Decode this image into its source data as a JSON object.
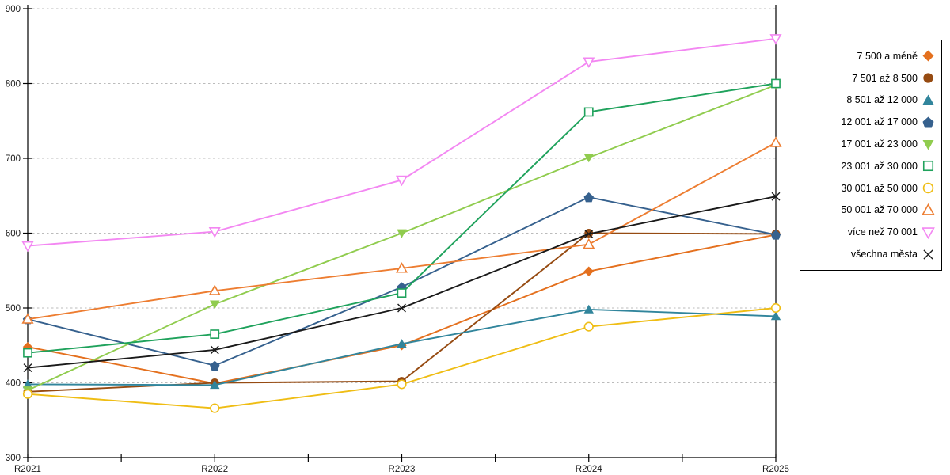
{
  "chart_data": {
    "type": "line",
    "title": "",
    "xlabel": "",
    "ylabel": "",
    "x_categories": [
      "R2021",
      "R2022",
      "R2023",
      "R2024",
      "R2025"
    ],
    "ylim": [
      300,
      900
    ],
    "y_ticks": [
      300,
      400,
      500,
      600,
      700,
      800,
      900
    ],
    "grid": "horizontal-dashed",
    "legend_position": "right",
    "series": [
      {
        "name": "7 500 a méně",
        "color": "#E4701E",
        "marker": "diamond-filled",
        "values": [
          448,
          399,
          450,
          549,
          598
        ]
      },
      {
        "name": "7 501 až 8 500",
        "color": "#964B12",
        "marker": "circle-filled",
        "values": [
          388,
          400,
          402,
          600,
          599
        ]
      },
      {
        "name": "8 501 až 12 000",
        "color": "#31859C",
        "marker": "triangle-up-filled",
        "values": [
          398,
          397,
          452,
          498,
          489
        ]
      },
      {
        "name": "12 001 až 17 000",
        "color": "#36618E",
        "marker": "pentagon-filled",
        "values": [
          485,
          423,
          528,
          648,
          598
        ]
      },
      {
        "name": "17 001 až 23 000",
        "color": "#90CC4E",
        "marker": "triangle-down-filled",
        "values": [
          390,
          505,
          600,
          701,
          798
        ]
      },
      {
        "name": "23 001 až 30 000",
        "color": "#1FA25C",
        "marker": "square-open",
        "values": [
          440,
          465,
          520,
          762,
          800
        ]
      },
      {
        "name": "30 001 až 50 000",
        "color": "#EFBD14",
        "marker": "circle-open",
        "values": [
          385,
          366,
          398,
          475,
          500
        ]
      },
      {
        "name": "50 001 až 70 000",
        "color": "#ED7D31",
        "marker": "triangle-up-open",
        "values": [
          485,
          523,
          553,
          585,
          721
        ]
      },
      {
        "name": "více než 70 001",
        "color": "#F387F2",
        "marker": "triangle-down-open",
        "values": [
          583,
          602,
          671,
          829,
          860
        ]
      },
      {
        "name": "všechna města",
        "color": "#1A1A1A",
        "marker": "x-cross",
        "values": [
          420,
          444,
          500,
          599,
          649
        ]
      }
    ],
    "colors": {
      "axis": "#000000",
      "gridline": "#bbbbbb",
      "tick_label": "#1a1a1a",
      "background": "#ffffff"
    }
  }
}
